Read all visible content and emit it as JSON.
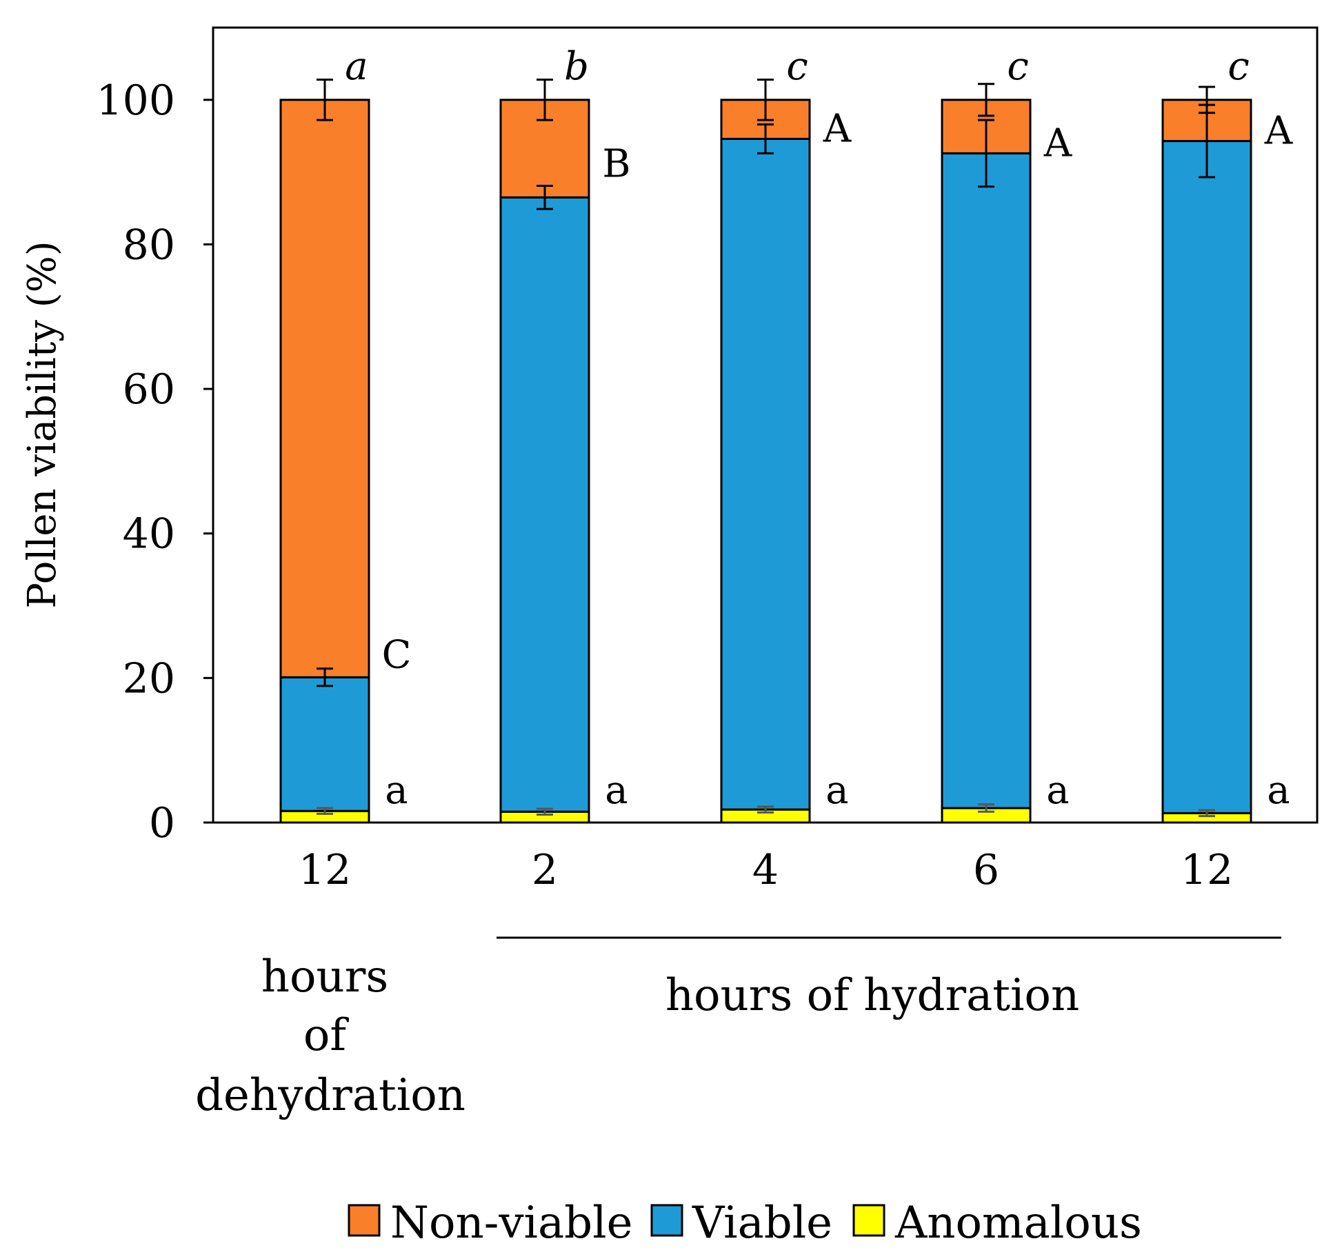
{
  "chart_data": {
    "type": "stacked-bar",
    "categories": [
      "12",
      "2",
      "4",
      "6",
      "12"
    ],
    "ylabel": "Pollen viability (%)",
    "ylim": [
      0,
      110
    ],
    "yticks": [
      0,
      20,
      40,
      60,
      80,
      100
    ],
    "grid": false,
    "legend_position": "bottom",
    "series": [
      {
        "name": "Anomalous",
        "color": "#ffff00",
        "values": [
          1.6,
          1.5,
          1.8,
          2.0,
          1.3
        ],
        "errors": [
          0.4,
          0.4,
          0.4,
          0.5,
          0.4
        ],
        "letters": [
          "a",
          "a",
          "a",
          "a",
          "a"
        ]
      },
      {
        "name": "Viable",
        "color": "#1e9bd7",
        "values": [
          18.5,
          85.0,
          92.8,
          90.6,
          93.0
        ],
        "errors": [
          1.2,
          1.6,
          2.0,
          4.6,
          5.0
        ],
        "letters": [
          "C",
          "B",
          "A",
          "A",
          "A"
        ]
      },
      {
        "name": "Non-viable",
        "color": "#f97f2b",
        "values": [
          79.9,
          13.5,
          5.4,
          7.4,
          5.7
        ],
        "errors": [
          2.8,
          2.8,
          2.8,
          2.2,
          1.8
        ],
        "letters": [
          "a",
          "b",
          "c",
          "c",
          "c"
        ]
      }
    ],
    "legend_order": [
      "Non-viable",
      "Viable",
      "Anomalous"
    ],
    "groups": [
      {
        "label_lines": [
          "hours",
          "of",
          "dehydration"
        ]
      },
      {
        "label_lines": [
          "hours of hydration"
        ]
      }
    ]
  }
}
